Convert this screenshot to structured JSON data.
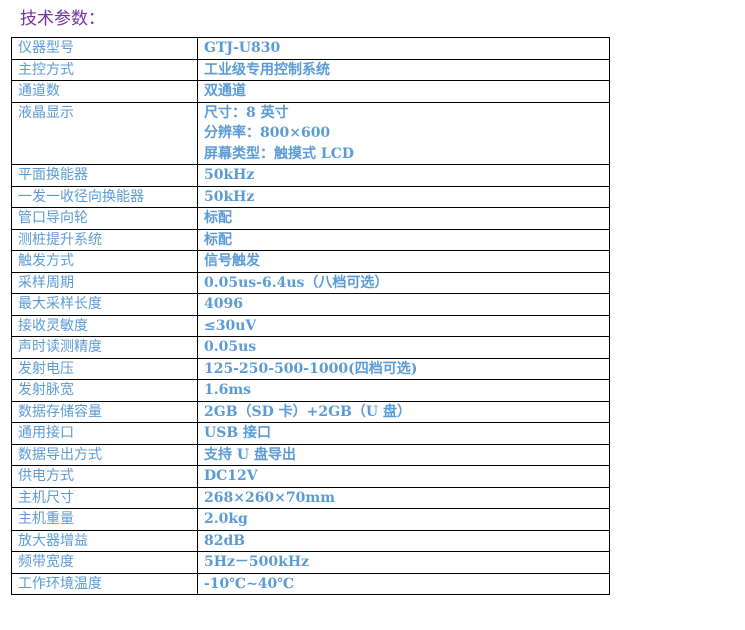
{
  "title": "技术参数：",
  "rows": [
    {
      "k": "仪器型号",
      "v": [
        "GTJ-U830"
      ]
    },
    {
      "k": "主控方式",
      "v": [
        "工业级专用控制系统"
      ]
    },
    {
      "k": "通道数",
      "v": [
        "双通道"
      ]
    },
    {
      "k": "液晶显示",
      "v": [
        "尺寸：8 英寸",
        "分辨率：800×600",
        "屏幕类型：触摸式 LCD"
      ]
    },
    {
      "k": "平面换能器",
      "v": [
        "50kHz"
      ]
    },
    {
      "k": "一发一收径向换能器",
      "v": [
        "50kHz"
      ]
    },
    {
      "k": "管口导向轮",
      "v": [
        "标配"
      ]
    },
    {
      "k": "测桩提升系统",
      "v": [
        "标配"
      ]
    },
    {
      "k": "触发方式",
      "v": [
        "信号触发"
      ]
    },
    {
      "k": "采样周期",
      "v": [
        "0.05us-6.4us（八档可选）"
      ]
    },
    {
      "k": "最大采样长度",
      "v": [
        "4096"
      ]
    },
    {
      "k": "接收灵敏度",
      "v": [
        "≤30uV"
      ]
    },
    {
      "k": "声时读测精度",
      "v": [
        "0.05us"
      ]
    },
    {
      "k": "发射电压",
      "v": [
        "125-250-500-1000(四档可选)"
      ]
    },
    {
      "k": "发射脉宽",
      "v": [
        "1.6ms"
      ]
    },
    {
      "k": "数据存储容量",
      "v": [
        "2GB（SD 卡）+2GB（U 盘）"
      ]
    },
    {
      "k": "通用接口",
      "v": [
        "USB 接口"
      ]
    },
    {
      "k": "数据导出方式",
      "v": [
        "支持 U 盘导出"
      ]
    },
    {
      "k": "供电方式",
      "v": [
        "DC12V"
      ]
    },
    {
      "k": "主机尺寸",
      "v": [
        "268×260×70mm"
      ]
    },
    {
      "k": "主机重量",
      "v": [
        "2.0kg"
      ]
    },
    {
      "k": "放大器增益",
      "v": [
        "82dB"
      ]
    },
    {
      "k": "频带宽度",
      "v": [
        "5Hz－500kHz"
      ]
    },
    {
      "k": "工作环境温度",
      "v": [
        "-10℃~40℃"
      ]
    }
  ]
}
